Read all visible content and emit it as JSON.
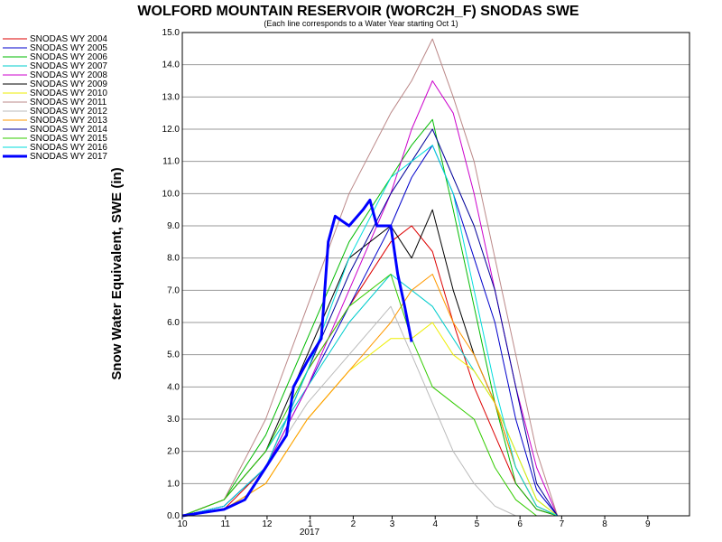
{
  "chart_data": {
    "type": "line",
    "title": "WOLFORD MOUNTAIN RESERVOIR (WORC2H_F) SNODAS SWE",
    "subtitle": "(Each line corresponds to a Water Year starting Oct 1)",
    "ylabel": "Snow Water Equivalent, SWE (in)",
    "xlabel": "",
    "ylim": [
      0,
      15
    ],
    "yticks": [
      "0.0",
      "1.0",
      "2.0",
      "3.0",
      "4.0",
      "5.0",
      "6.0",
      "7.0",
      "8.0",
      "9.0",
      "10.0",
      "11.0",
      "12.0",
      "13.0",
      "14.0",
      "15.0"
    ],
    "xticks": [
      "10",
      "11",
      "12",
      "1",
      "2",
      "3",
      "4",
      "5",
      "6",
      "7",
      "8",
      "9"
    ],
    "x_year_label": "2017",
    "grid": "horizontal",
    "legend_position": "left",
    "series": [
      {
        "name": "SNODAS WY 2004",
        "color": "#dd0000",
        "x": [
          0,
          30,
          60,
          90,
          120,
          150,
          165,
          180,
          195,
          210,
          225,
          240,
          255,
          270
        ],
        "values": [
          0,
          0.2,
          1.5,
          4.5,
          6.5,
          8.5,
          9.0,
          8.2,
          6.0,
          4.0,
          2.5,
          1.0,
          0.2,
          0
        ]
      },
      {
        "name": "SNODAS WY 2005",
        "color": "#0000cc",
        "x": [
          0,
          30,
          60,
          90,
          120,
          150,
          165,
          180,
          195,
          210,
          225,
          240,
          255,
          270
        ],
        "values": [
          0,
          0.3,
          1.5,
          4.0,
          6.5,
          9.0,
          10.5,
          11.5,
          10.0,
          8.0,
          6.0,
          3.0,
          0.8,
          0
        ]
      },
      {
        "name": "SNODAS WY 2006",
        "color": "#00bb00",
        "x": [
          0,
          30,
          60,
          90,
          120,
          150,
          165,
          180,
          195,
          210,
          225,
          240,
          255,
          270
        ],
        "values": [
          0,
          0.5,
          2.5,
          5.5,
          8.5,
          10.5,
          11.5,
          12.3,
          9.5,
          6.5,
          3.5,
          1.0,
          0.2,
          0
        ]
      },
      {
        "name": "SNODAS WY 2007",
        "color": "#00cccc",
        "x": [
          0,
          30,
          60,
          90,
          120,
          150,
          165,
          180,
          195,
          210,
          225,
          240,
          255,
          270
        ],
        "values": [
          0,
          0.5,
          2.0,
          4.0,
          6.0,
          7.5,
          7.0,
          6.5,
          5.5,
          4.5,
          3.5,
          2.0,
          0.5,
          0
        ]
      },
      {
        "name": "SNODAS WY 2008",
        "color": "#cc00cc",
        "x": [
          0,
          30,
          60,
          90,
          120,
          150,
          165,
          180,
          195,
          210,
          225,
          240,
          255,
          270
        ],
        "values": [
          0,
          0.3,
          1.5,
          4.0,
          7.0,
          10.0,
          12.0,
          13.5,
          12.5,
          10.0,
          7.0,
          4.0,
          1.5,
          0
        ]
      },
      {
        "name": "SNODAS WY 2009",
        "color": "#000000",
        "x": [
          0,
          30,
          60,
          90,
          120,
          150,
          165,
          180,
          195,
          210,
          225,
          240,
          255,
          270
        ],
        "values": [
          0,
          0.5,
          2.0,
          5.0,
          8.0,
          9.0,
          8.0,
          9.5,
          7.0,
          5.0,
          3.5,
          1.5,
          0.3,
          0
        ]
      },
      {
        "name": "SNODAS WY 2010",
        "color": "#eeee00",
        "x": [
          0,
          30,
          60,
          90,
          120,
          150,
          165,
          180,
          195,
          210,
          225,
          240,
          255,
          270
        ],
        "values": [
          0,
          0.2,
          1.0,
          3.0,
          4.5,
          5.5,
          5.5,
          6.0,
          5.0,
          4.5,
          3.5,
          2.0,
          0.5,
          0
        ]
      },
      {
        "name": "SNODAS WY 2011",
        "color": "#bb8888",
        "x": [
          0,
          30,
          60,
          90,
          120,
          150,
          165,
          180,
          195,
          210,
          225,
          240,
          255,
          270
        ],
        "values": [
          0,
          0.5,
          3.0,
          6.5,
          10.0,
          12.5,
          13.5,
          14.8,
          13.0,
          11.0,
          8.0,
          5.0,
          2.0,
          0
        ]
      },
      {
        "name": "SNODAS WY 2012",
        "color": "#bbbbbb",
        "x": [
          0,
          30,
          60,
          90,
          120,
          150,
          165,
          180,
          195,
          210,
          225,
          240,
          255,
          270
        ],
        "values": [
          0,
          0.3,
          1.5,
          3.5,
          5.0,
          6.5,
          5.0,
          3.5,
          2.0,
          1.0,
          0.3,
          0,
          0,
          0
        ]
      },
      {
        "name": "SNODAS WY 2013",
        "color": "#ff9900",
        "x": [
          0,
          30,
          60,
          90,
          120,
          150,
          165,
          180,
          195,
          210,
          225,
          240,
          255,
          270
        ],
        "values": [
          0,
          0.2,
          1.0,
          3.0,
          4.5,
          6.0,
          7.0,
          7.5,
          6.0,
          5.0,
          3.5,
          1.5,
          0.3,
          0
        ]
      },
      {
        "name": "SNODAS WY 2014",
        "color": "#000099",
        "x": [
          0,
          30,
          60,
          90,
          120,
          150,
          165,
          180,
          195,
          210,
          225,
          240,
          255,
          270
        ],
        "values": [
          0,
          0.3,
          1.5,
          4.5,
          7.5,
          10.0,
          11.0,
          12.0,
          10.5,
          9.0,
          7.0,
          4.0,
          1.0,
          0
        ]
      },
      {
        "name": "SNODAS WY 2015",
        "color": "#33cc00",
        "x": [
          0,
          30,
          60,
          90,
          120,
          150,
          165,
          180,
          195,
          210,
          225,
          240,
          255,
          270
        ],
        "values": [
          0,
          0.5,
          2.0,
          4.5,
          6.5,
          7.5,
          5.5,
          4.0,
          3.5,
          3.0,
          1.5,
          0.5,
          0,
          0
        ]
      },
      {
        "name": "SNODAS WY 2016",
        "color": "#00dddd",
        "x": [
          0,
          30,
          60,
          90,
          120,
          150,
          165,
          180,
          195,
          210,
          225,
          240,
          255,
          270
        ],
        "values": [
          0,
          0.3,
          1.5,
          4.5,
          8.0,
          10.5,
          11.0,
          11.5,
          10.0,
          7.0,
          4.0,
          1.5,
          0.3,
          0
        ]
      },
      {
        "name": "SNODAS WY 2017",
        "color": "#0000ff",
        "x": [
          0,
          15,
          30,
          45,
          60,
          75,
          80,
          90,
          100,
          105,
          110,
          120,
          130,
          135,
          140,
          150,
          155,
          160,
          165
        ],
        "values": [
          0,
          0.1,
          0.2,
          0.5,
          1.5,
          2.5,
          4.0,
          4.8,
          5.5,
          8.5,
          9.3,
          9.0,
          9.5,
          9.8,
          9.0,
          9.0,
          7.5,
          6.5,
          5.4
        ],
        "bold": true
      }
    ]
  }
}
